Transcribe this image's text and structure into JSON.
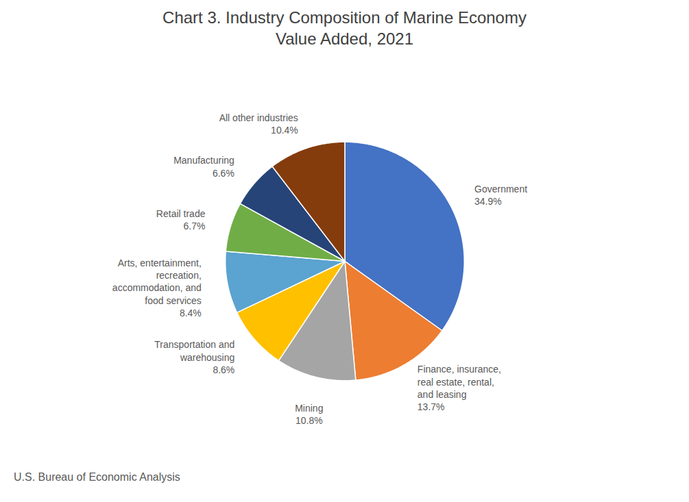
{
  "chart_data": {
    "type": "pie",
    "title": "Chart 3. Industry Composition of Marine Economy\nValue Added, 2021",
    "caption": "U.S. Bureau of Economic Analysis",
    "categories": [
      "Government",
      "Finance, insurance,\nreal estate, rental,\nand leasing",
      "Mining",
      "Transportation and\nwarehousing",
      "Arts, entertainment,\nrecreation,\naccommodation, and\nfood services",
      "Retail trade",
      "Manufacturing",
      "All other industries"
    ],
    "values": [
      34.9,
      13.7,
      10.8,
      8.6,
      8.4,
      6.7,
      6.6,
      10.4
    ],
    "value_labels": [
      "34.9%",
      "13.7%",
      "10.8%",
      "8.6%",
      "8.4%",
      "6.7%",
      "6.6%",
      "10.4%"
    ],
    "colors": [
      "#4472C4",
      "#ED7D31",
      "#A5A5A5",
      "#FFC000",
      "#5BA3D0",
      "#70AD47",
      "#264478",
      "#843C0C"
    ],
    "data_labels": true
  }
}
